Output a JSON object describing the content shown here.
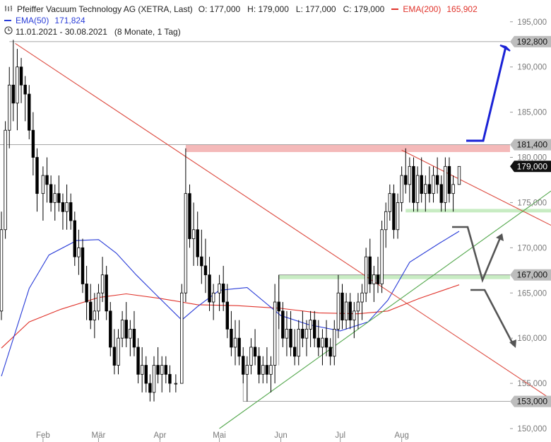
{
  "header": {
    "title": "Pfeiffer Vacuum Technology AG (XETRA, Last)",
    "ohlc": "O: 177,000   H: 179,000   L: 177,000   C: 179,000",
    "ema200_label": "EMA(200)",
    "ema200_value": "165,902",
    "ema50_label": "EMA(50)",
    "ema50_value": "171,824",
    "period": "11.01.2021 - 30.08.2021",
    "period_detail": "(8 Monate, 1 Tag)"
  },
  "colors": {
    "ema200": "#e0332b",
    "ema50": "#2a3dd8",
    "trend_down": "#dd4b40",
    "trend_up": "#55a84e",
    "resistance_zone": "#f4b9b9",
    "support_zone": "#c8ecc3",
    "arrow_up": "#1a22d6",
    "arrow_gray": "#555555",
    "price_box": "#111111"
  },
  "chart_data": {
    "type": "candlestick",
    "y_axis": {
      "range": [
        150000,
        196000
      ],
      "ticks": [
        {
          "value": 150000,
          "label": "150,000"
        },
        {
          "value": 155000,
          "label": "155,000"
        },
        {
          "value": 160000,
          "label": "160,000"
        },
        {
          "value": 165000,
          "label": "165,000"
        },
        {
          "value": 170000,
          "label": "170,000"
        },
        {
          "value": 175000,
          "label": "175,000"
        },
        {
          "value": 180000,
          "label": "180,000"
        },
        {
          "value": 185000,
          "label": "185,000"
        },
        {
          "value": 190000,
          "label": "190,000"
        },
        {
          "value": 195000,
          "label": "195,000"
        }
      ]
    },
    "x_axis": {
      "range": [
        "2021-01-11",
        "2021-08-30"
      ],
      "months": [
        {
          "label": "Feb",
          "date": "2021-02-01"
        },
        {
          "label": "Mär",
          "date": "2021-03-01"
        },
        {
          "label": "Apr",
          "date": "2021-04-01"
        },
        {
          "label": "Mai",
          "date": "2021-05-01"
        },
        {
          "label": "Jun",
          "date": "2021-06-01"
        },
        {
          "label": "Jul",
          "date": "2021-07-01"
        },
        {
          "label": "Aug",
          "date": "2021-08-01"
        }
      ]
    },
    "price_levels": [
      {
        "value": 192800,
        "label": "192,800",
        "style": "gray"
      },
      {
        "value": 181400,
        "label": "181,400",
        "style": "gray"
      },
      {
        "value": 179000,
        "label": "179,000",
        "style": "black"
      },
      {
        "value": 167000,
        "label": "167,000",
        "style": "gray"
      },
      {
        "value": 153000,
        "label": "153,000",
        "style": "gray"
      }
    ],
    "trendlines": [
      {
        "name": "downtrend",
        "points": [
          [
            "2021-01-18",
            192600
          ],
          [
            "2021-08-30",
            160000
          ]
        ]
      },
      {
        "name": "downtrend-short",
        "points": [
          [
            "2021-08-01",
            180800
          ],
          [
            "2021-08-30",
            177600
          ]
        ]
      },
      {
        "name": "uptrend",
        "points": [
          [
            "2021-05-01",
            150000
          ],
          [
            "2021-08-30",
            169000
          ]
        ]
      }
    ],
    "ema50": [
      [
        "2021-01-11",
        155800
      ],
      [
        "2021-01-25",
        165500
      ],
      [
        "2021-02-04",
        169200
      ],
      [
        "2021-02-18",
        170800
      ],
      [
        "2021-03-01",
        170900
      ],
      [
        "2021-03-10",
        169400
      ],
      [
        "2021-03-20",
        167000
      ],
      [
        "2021-03-31",
        164600
      ],
      [
        "2021-04-12",
        162000
      ],
      [
        "2021-04-20",
        163500
      ],
      [
        "2021-05-01",
        165300
      ],
      [
        "2021-05-15",
        165600
      ],
      [
        "2021-06-01",
        162500
      ],
      [
        "2021-06-15",
        161500
      ],
      [
        "2021-07-01",
        160800
      ],
      [
        "2021-07-15",
        161800
      ],
      [
        "2021-07-25",
        164200
      ],
      [
        "2021-08-05",
        168400
      ],
      [
        "2021-08-20",
        170500
      ],
      [
        "2021-08-30",
        171824
      ]
    ],
    "ema200": [
      [
        "2021-01-11",
        158900
      ],
      [
        "2021-01-25",
        161800
      ],
      [
        "2021-02-10",
        163200
      ],
      [
        "2021-03-01",
        164500
      ],
      [
        "2021-03-15",
        164900
      ],
      [
        "2021-04-01",
        164400
      ],
      [
        "2021-04-20",
        163700
      ],
      [
        "2021-05-10",
        163600
      ],
      [
        "2021-06-01",
        163300
      ],
      [
        "2021-06-20",
        162800
      ],
      [
        "2021-07-10",
        162700
      ],
      [
        "2021-07-25",
        163000
      ],
      [
        "2021-08-10",
        164400
      ],
      [
        "2021-08-30",
        165902
      ]
    ],
    "candles": [
      [
        "2021-01-11",
        163,
        174,
        162,
        172
      ],
      [
        "2021-01-13",
        172,
        184,
        171,
        183
      ],
      [
        "2021-01-15",
        183,
        190,
        181,
        188
      ],
      [
        "2021-01-17",
        188,
        193,
        184,
        186
      ],
      [
        "2021-01-19",
        186,
        192,
        183,
        190
      ],
      [
        "2021-01-21",
        190,
        191,
        186,
        188
      ],
      [
        "2021-01-23",
        188,
        189,
        184,
        187
      ],
      [
        "2021-01-25",
        187,
        188,
        182,
        183
      ],
      [
        "2021-01-27",
        183,
        185,
        178,
        180
      ],
      [
        "2021-01-29",
        180,
        181,
        174,
        176
      ],
      [
        "2021-02-01",
        176,
        179,
        173,
        178
      ],
      [
        "2021-02-03",
        178,
        180,
        175,
        177
      ],
      [
        "2021-02-05",
        177,
        178,
        174,
        175
      ],
      [
        "2021-02-07",
        175,
        177,
        173,
        176
      ],
      [
        "2021-02-09",
        176,
        178,
        174,
        175
      ],
      [
        "2021-02-11",
        175,
        176,
        172,
        174
      ],
      [
        "2021-02-13",
        174,
        177,
        172,
        175
      ],
      [
        "2021-02-15",
        175,
        176,
        172,
        173
      ],
      [
        "2021-02-17",
        173,
        174,
        168,
        169
      ],
      [
        "2021-02-19",
        169,
        172,
        167,
        170
      ],
      [
        "2021-02-21",
        170,
        171,
        165,
        166
      ],
      [
        "2021-02-23",
        166,
        168,
        162,
        164
      ],
      [
        "2021-02-25",
        164,
        166,
        161,
        162
      ],
      [
        "2021-02-27",
        162,
        165,
        160,
        163
      ],
      [
        "2021-03-01",
        163,
        166,
        162,
        165
      ],
      [
        "2021-03-03",
        165,
        169,
        164,
        167
      ],
      [
        "2021-03-05",
        167,
        168,
        162,
        163
      ],
      [
        "2021-03-07",
        163,
        164,
        158,
        159
      ],
      [
        "2021-03-09",
        159,
        161,
        156,
        157
      ],
      [
        "2021-03-11",
        157,
        161,
        156,
        160
      ],
      [
        "2021-03-13",
        160,
        163,
        159,
        162
      ],
      [
        "2021-03-15",
        162,
        164,
        159,
        160
      ],
      [
        "2021-03-17",
        160,
        162,
        158,
        161
      ],
      [
        "2021-03-19",
        161,
        163,
        158,
        159
      ],
      [
        "2021-03-21",
        159,
        160,
        155,
        156
      ],
      [
        "2021-03-23",
        156,
        159,
        154,
        157
      ],
      [
        "2021-03-25",
        157,
        158,
        154,
        155
      ],
      [
        "2021-03-27",
        155,
        156,
        153,
        154
      ],
      [
        "2021-03-29",
        154,
        158,
        153,
        157
      ],
      [
        "2021-03-31",
        157,
        159,
        155,
        156
      ],
      [
        "2021-04-02",
        156,
        158,
        154,
        157
      ],
      [
        "2021-04-04",
        157,
        158,
        155,
        156
      ],
      [
        "2021-04-06",
        156,
        157,
        154,
        155
      ],
      [
        "2021-04-09",
        155,
        156,
        154,
        155
      ],
      [
        "2021-04-12",
        155,
        166,
        155,
        165
      ],
      [
        "2021-04-14",
        165,
        181,
        164,
        176
      ],
      [
        "2021-04-16",
        176,
        177,
        170,
        171
      ],
      [
        "2021-04-18",
        171,
        175,
        168,
        172
      ],
      [
        "2021-04-20",
        172,
        174,
        168,
        169
      ],
      [
        "2021-04-22",
        169,
        172,
        166,
        168
      ],
      [
        "2021-04-24",
        168,
        171,
        165,
        167
      ],
      [
        "2021-04-26",
        167,
        169,
        163,
        164
      ],
      [
        "2021-04-28",
        164,
        166,
        162,
        165
      ],
      [
        "2021-05-01",
        165,
        167,
        163,
        166
      ],
      [
        "2021-05-03",
        166,
        168,
        163,
        164
      ],
      [
        "2021-05-05",
        164,
        166,
        160,
        161
      ],
      [
        "2021-05-07",
        161,
        163,
        158,
        159
      ],
      [
        "2021-05-09",
        159,
        162,
        157,
        160
      ],
      [
        "2021-05-11",
        160,
        162,
        157,
        158
      ],
      [
        "2021-05-13",
        158,
        159,
        155,
        156
      ],
      [
        "2021-05-15",
        156,
        158,
        153,
        157
      ],
      [
        "2021-05-17",
        157,
        160,
        156,
        159
      ],
      [
        "2021-05-19",
        159,
        161,
        157,
        158
      ],
      [
        "2021-05-21",
        158,
        159,
        155,
        156
      ],
      [
        "2021-05-23",
        156,
        158,
        155,
        157
      ],
      [
        "2021-05-25",
        157,
        159,
        155,
        156
      ],
      [
        "2021-05-27",
        156,
        158,
        154,
        157
      ],
      [
        "2021-05-29",
        157,
        166,
        155,
        164
      ],
      [
        "2021-05-31",
        164,
        167,
        161,
        163
      ],
      [
        "2021-06-02",
        163,
        164,
        159,
        160
      ],
      [
        "2021-06-04",
        160,
        163,
        158,
        161
      ],
      [
        "2021-06-06",
        161,
        163,
        158,
        159
      ],
      [
        "2021-06-08",
        159,
        161,
        157,
        158
      ],
      [
        "2021-06-10",
        158,
        162,
        157,
        161
      ],
      [
        "2021-06-12",
        161,
        163,
        159,
        160
      ],
      [
        "2021-06-14",
        160,
        162,
        158,
        161
      ],
      [
        "2021-06-16",
        161,
        163,
        159,
        162
      ],
      [
        "2021-06-18",
        162,
        163,
        159,
        160
      ],
      [
        "2021-06-20",
        160,
        162,
        158,
        159
      ],
      [
        "2021-06-22",
        159,
        161,
        157,
        160
      ],
      [
        "2021-06-24",
        160,
        162,
        158,
        159
      ],
      [
        "2021-06-26",
        159,
        160,
        157,
        158
      ],
      [
        "2021-06-28",
        158,
        162,
        157,
        161
      ],
      [
        "2021-06-30",
        161,
        167,
        160,
        165
      ],
      [
        "2021-07-02",
        165,
        166,
        161,
        162
      ],
      [
        "2021-07-04",
        162,
        165,
        161,
        164
      ],
      [
        "2021-07-06",
        164,
        165,
        161,
        162
      ],
      [
        "2021-07-08",
        162,
        164,
        160,
        163
      ],
      [
        "2021-07-10",
        163,
        165,
        161,
        164
      ],
      [
        "2021-07-12",
        164,
        166,
        162,
        165
      ],
      [
        "2021-07-14",
        165,
        170,
        164,
        169
      ],
      [
        "2021-07-16",
        169,
        171,
        165,
        166
      ],
      [
        "2021-07-18",
        166,
        168,
        164,
        167
      ],
      [
        "2021-07-20",
        167,
        169,
        165,
        166
      ],
      [
        "2021-07-22",
        166,
        173,
        165,
        172
      ],
      [
        "2021-07-24",
        172,
        175,
        170,
        174
      ],
      [
        "2021-07-26",
        174,
        177,
        173,
        176
      ],
      [
        "2021-07-28",
        176,
        177,
        171,
        172
      ],
      [
        "2021-07-30",
        172,
        176,
        171,
        175
      ],
      [
        "2021-08-01",
        175,
        179,
        174,
        178
      ],
      [
        "2021-08-03",
        178,
        181,
        176,
        177
      ],
      [
        "2021-08-05",
        177,
        180,
        175,
        179
      ],
      [
        "2021-08-07",
        179,
        180,
        174,
        175
      ],
      [
        "2021-08-09",
        175,
        179,
        174,
        178
      ],
      [
        "2021-08-11",
        178,
        180,
        175,
        176
      ],
      [
        "2021-08-13",
        176,
        178,
        174,
        177
      ],
      [
        "2021-08-15",
        177,
        179,
        175,
        176
      ],
      [
        "2021-08-17",
        176,
        179,
        175,
        178
      ],
      [
        "2021-08-19",
        178,
        180,
        176,
        177
      ],
      [
        "2021-08-21",
        177,
        178,
        174,
        175
      ],
      [
        "2021-08-23",
        175,
        180,
        174,
        179
      ],
      [
        "2021-08-25",
        179,
        180,
        175,
        176
      ],
      [
        "2021-08-27",
        176,
        178,
        174,
        177
      ],
      [
        "2021-08-30",
        177,
        179,
        177,
        179
      ]
    ]
  }
}
